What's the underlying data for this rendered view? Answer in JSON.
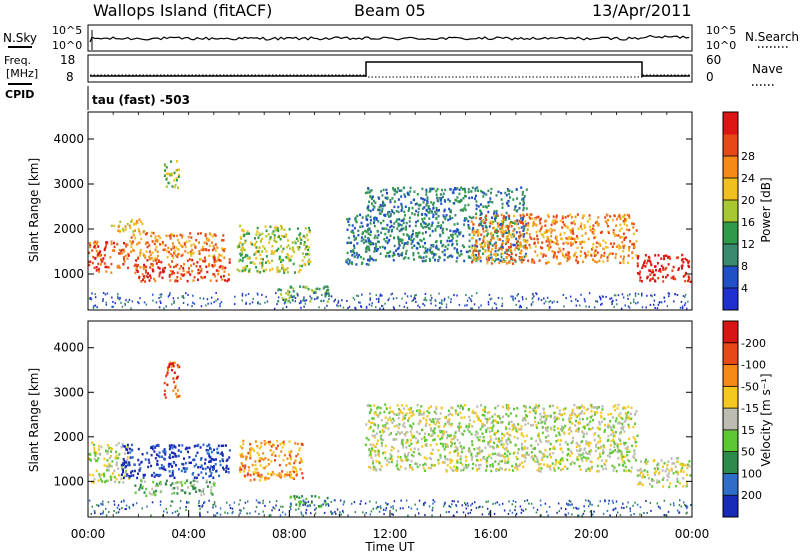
{
  "header": {
    "site": "Wallops Island (fitACF)",
    "beam": "Beam 05",
    "date": "13/Apr/2011"
  },
  "status_panels": {
    "noise": {
      "left_label": "N.Sky",
      "right_label": "N.Search",
      "left_ticks": [
        "10^5",
        "10^0"
      ],
      "right_ticks": [
        "10^5",
        "10^0"
      ]
    },
    "freq": {
      "left_label_1": "Freq.",
      "left_label_2": "[MHz]",
      "left_ticks": [
        "18",
        "8"
      ],
      "right_label": "Nave",
      "right_ticks": [
        "60",
        "0"
      ]
    },
    "cpid": {
      "label": "CPID",
      "value": "tau (fast) -503"
    }
  },
  "chart_data": [
    {
      "type": "heatmap",
      "name": "power",
      "ylabel": "Slant Range [km]",
      "yticks": [
        "1000",
        "2000",
        "3000",
        "4000"
      ],
      "ylim": [
        200,
        4600
      ],
      "xlim_hours": [
        0,
        24
      ],
      "colorbar": {
        "label": "Power [dB]",
        "ticks": [
          "4",
          "8",
          "12",
          "16",
          "20",
          "24",
          "28"
        ],
        "colors": [
          "#1f2fd0",
          "#2050c8",
          "#3a8a70",
          "#2e9a4a",
          "#a8c832",
          "#f0c020",
          "#f58a18",
          "#e84818",
          "#dc1414"
        ]
      },
      "echo_regions": [
        {
          "t": [
            0.0,
            1.6
          ],
          "r": [
            1050,
            1750
          ],
          "level": 7
        },
        {
          "t": [
            0.9,
            2.2
          ],
          "r": [
            1950,
            2250
          ],
          "level": 5
        },
        {
          "t": [
            1.6,
            5.4
          ],
          "r": [
            1350,
            1950
          ],
          "level": 6
        },
        {
          "t": [
            1.8,
            5.6
          ],
          "r": [
            850,
            1350
          ],
          "level": 7
        },
        {
          "t": [
            3.0,
            3.6
          ],
          "r": [
            2900,
            3550
          ],
          "level": 4
        },
        {
          "t": [
            5.9,
            8.8
          ],
          "r": [
            1050,
            2100
          ],
          "level": 4
        },
        {
          "t": [
            7.5,
            9.6
          ],
          "r": [
            400,
            750
          ],
          "level": 3
        },
        {
          "t": [
            10.2,
            11.2
          ],
          "r": [
            1200,
            2350
          ],
          "level": 2
        },
        {
          "t": [
            11.0,
            17.4
          ],
          "r": [
            1300,
            2950
          ],
          "level": 2
        },
        {
          "t": [
            15.2,
            21.8
          ],
          "r": [
            1250,
            2350
          ],
          "level": 6
        },
        {
          "t": [
            21.8,
            23.9
          ],
          "r": [
            850,
            1450
          ],
          "level": 8
        }
      ]
    },
    {
      "type": "heatmap",
      "name": "velocity",
      "ylabel": "Slant Range [km]",
      "yticks": [
        "1000",
        "2000",
        "3000",
        "4000"
      ],
      "ylim": [
        200,
        4600
      ],
      "xlim_hours": [
        0,
        24
      ],
      "xticks": [
        "00:00",
        "04:00",
        "08:00",
        "12:00",
        "16:00",
        "20:00",
        "00:00"
      ],
      "xlabel": "Time UT",
      "colorbar": {
        "label": "Velocity [m s⁻¹]",
        "ticks": [
          "200",
          "100",
          "50",
          "15",
          "-15",
          "-50",
          "-100",
          "-200"
        ],
        "colors": [
          "#1a2ab8",
          "#2e6ec8",
          "#2e8a4a",
          "#5ec832",
          "#bcbcb0",
          "#f5c820",
          "#f58a18",
          "#e84818",
          "#d81414"
        ]
      },
      "echo_regions": [
        {
          "t": [
            0.0,
            1.6
          ],
          "r": [
            1000,
            1900
          ],
          "level": 4
        },
        {
          "t": [
            1.3,
            5.6
          ],
          "r": [
            1100,
            1850
          ],
          "level": 0
        },
        {
          "t": [
            1.8,
            5.0
          ],
          "r": [
            700,
            1050
          ],
          "level": 3
        },
        {
          "t": [
            3.0,
            3.6
          ],
          "r": [
            2900,
            3700
          ],
          "level": 7
        },
        {
          "t": [
            6.0,
            8.5
          ],
          "r": [
            1050,
            1950
          ],
          "level": 6
        },
        {
          "t": [
            8.0,
            9.5
          ],
          "r": [
            450,
            700
          ],
          "level": 2
        },
        {
          "t": [
            11.0,
            21.8
          ],
          "r": [
            1250,
            2750
          ],
          "level": 4
        },
        {
          "t": [
            21.8,
            23.9
          ],
          "r": [
            900,
            1550
          ],
          "level": 4
        }
      ]
    }
  ]
}
